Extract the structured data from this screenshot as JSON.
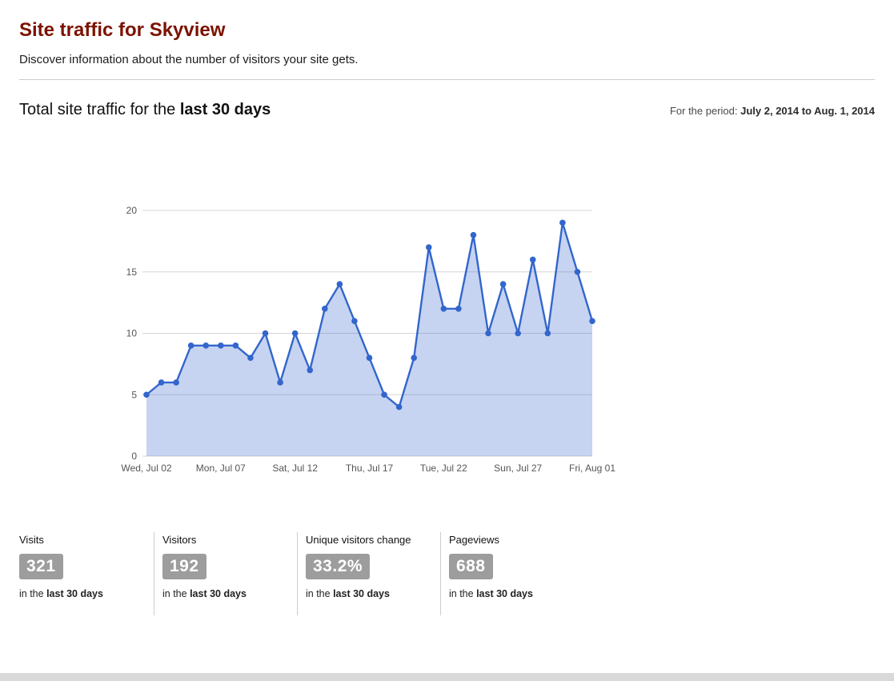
{
  "page": {
    "title": "Site traffic for Skyview",
    "subtitle": "Discover information about the number of visitors your site gets."
  },
  "section": {
    "heading_prefix": "Total site traffic for the ",
    "heading_bold": "last 30 days",
    "period_label": "For the period: ",
    "period_value": "July 2, 2014 to Aug. 1, 2014"
  },
  "stats": [
    {
      "label": "Visits",
      "value": "321",
      "caption_prefix": "in the ",
      "caption_bold": "last 30 days"
    },
    {
      "label": "Visitors",
      "value": "192",
      "caption_prefix": "in the ",
      "caption_bold": "last 30 days"
    },
    {
      "label": "Unique visitors change",
      "value": "33.2%",
      "caption_prefix": "in the ",
      "caption_bold": "last 30 days"
    },
    {
      "label": "Pageviews",
      "value": "688",
      "caption_prefix": "in the ",
      "caption_bold": "last 30 days"
    }
  ],
  "colors": {
    "title_maroon": "#7c1200",
    "line_blue": "#3366cc",
    "area_fill": "rgba(51,102,204,0.28)",
    "badge_bg": "#9d9d9d",
    "grid_gray": "#d6d6d6",
    "axis_label_gray": "#555555"
  },
  "chart_data": {
    "type": "area",
    "title": "Total site traffic for the last 30 days",
    "xlabel": "",
    "ylabel": "",
    "x_tick_labels": [
      "Wed, Jul 02",
      "Mon, Jul 07",
      "Sat, Jul 12",
      "Thu, Jul 17",
      "Tue, Jul 22",
      "Sun, Jul 27",
      "Fri, Aug 01"
    ],
    "x_tick_every": 5,
    "values": [
      5,
      6,
      6,
      9,
      9,
      9,
      9,
      8,
      10,
      6,
      10,
      7,
      12,
      14,
      11,
      8,
      5,
      4,
      8,
      17,
      12,
      12,
      18,
      10,
      14,
      10,
      16,
      10,
      19,
      15,
      11
    ],
    "y_ticks": [
      0,
      5,
      10,
      15,
      20
    ],
    "ylim": [
      0,
      20
    ],
    "grid": true,
    "legend": "none",
    "markers": true
  }
}
